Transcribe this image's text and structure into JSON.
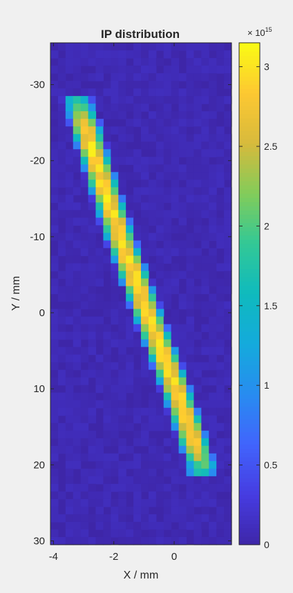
{
  "chart_data": {
    "type": "heatmap",
    "title": "IP distribution",
    "xlabel": "X / mm",
    "ylabel": "Y / mm",
    "xlim": [
      -4.1,
      1.9
    ],
    "ylim": [
      -35.5,
      30.5
    ],
    "y_reversed": true,
    "xticks": [
      -4,
      -2,
      0
    ],
    "yticks": [
      -30,
      -20,
      -10,
      0,
      10,
      20,
      30
    ],
    "xtick_labels": [
      "-4",
      "-2",
      "0"
    ],
    "ytick_labels": [
      "-30",
      "-20",
      "-10",
      "0",
      "10",
      "20",
      "30"
    ],
    "colorbar": {
      "min": 0,
      "max": 3.15,
      "ticks": [
        0,
        0.5,
        1,
        1.5,
        2,
        2.5,
        3
      ],
      "tick_labels": [
        "0",
        "0.5",
        "1",
        "1.5",
        "2",
        "2.5",
        "3"
      ],
      "exponent_label": "× 10",
      "exponent_power": "15",
      "colormap": "parula"
    },
    "grid": false,
    "ridge": {
      "points": [
        [
          -3.2,
          -28
        ],
        [
          -2.6,
          -20
        ],
        [
          -1.8,
          -10
        ],
        [
          -0.9,
          0
        ],
        [
          0.05,
          10
        ],
        [
          0.9,
          20
        ]
      ],
      "peak": 3.1,
      "y_range": [
        -28.5,
        21.5
      ],
      "x_spread_mm": 0.55,
      "background_level": 0.12
    }
  },
  "colors": {
    "figure_background": "#f0f0f0",
    "axes_background": "#3e26a8",
    "axis_color": "#262626"
  }
}
